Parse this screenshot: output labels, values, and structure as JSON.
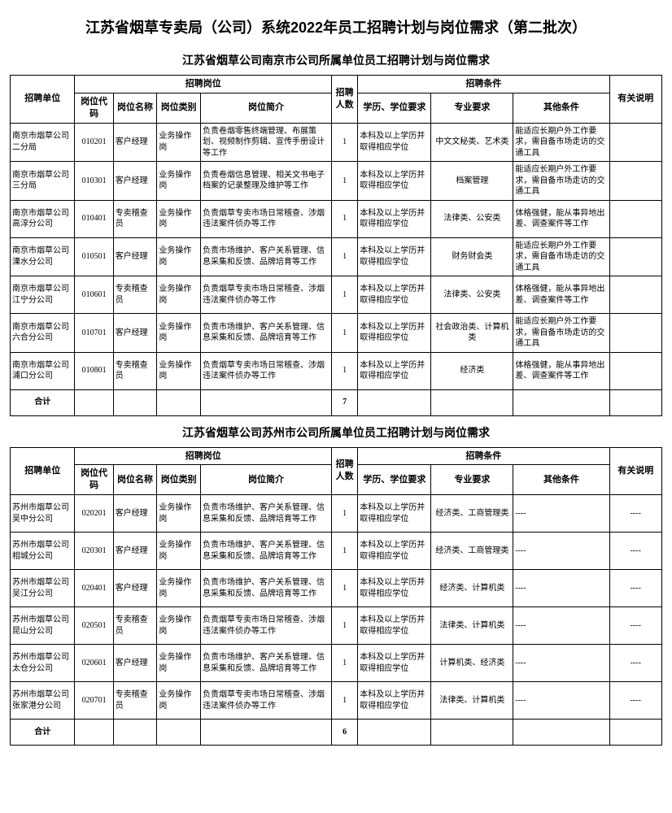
{
  "mainTitle": "江苏省烟草专卖局（公司）系统2022年员工招聘计划与岗位需求（第二批次）",
  "headers": {
    "unit": "招聘单位",
    "positionGroup": "招聘岗位",
    "code": "岗位代码",
    "pname": "岗位名称",
    "ptype": "岗位类别",
    "pdesc": "岗位简介",
    "count": "招聘人数",
    "reqGroup": "招聘条件",
    "edu": "学历、学位要求",
    "major": "专业要求",
    "other": "其他条件",
    "note": "有关说明",
    "totalLabel": "合计"
  },
  "sections": [
    {
      "subtitle": "江苏省烟草公司南京市公司所属单位员工招聘计划与岗位需求",
      "rows": [
        {
          "unit": "南京市烟草公司二分局",
          "code": "010201",
          "pname": "客户经理",
          "ptype": "业务操作岗",
          "pdesc": "负责卷烟零售终端管理、布展策划、视频制作剪辑、宣传手册设计等工作",
          "count": "1",
          "edu": "本科及以上学历并取得相应学位",
          "major": "中文文秘类、艺术类",
          "other": "能适应长期户外工作要求，需自备市场走访的交通工具",
          "note": ""
        },
        {
          "unit": "南京市烟草公司三分局",
          "code": "010301",
          "pname": "客户经理",
          "ptype": "业务操作岗",
          "pdesc": "负责卷烟信息管理、相关文书电子档案的记录整理及维护等工作",
          "count": "1",
          "edu": "本科及以上学历并取得相应学位",
          "major": "档案管理",
          "other": "能适应长期户外工作要求，需自备市场走访的交通工具",
          "note": ""
        },
        {
          "unit": "南京市烟草公司高淳分公司",
          "code": "010401",
          "pname": "专卖稽查员",
          "ptype": "业务操作岗",
          "pdesc": "负责烟草专卖市场日常稽查、涉烟违法案件侦办等工作",
          "count": "1",
          "edu": "本科及以上学历并取得相应学位",
          "major": "法律类、公安类",
          "other": "体格强健，能从事异地出差、调查案件等工作",
          "note": ""
        },
        {
          "unit": "南京市烟草公司溧水分公司",
          "code": "010501",
          "pname": "客户经理",
          "ptype": "业务操作岗",
          "pdesc": "负责市场维护、客户关系管理、信息采集和反馈、品牌培育等工作",
          "count": "1",
          "edu": "本科及以上学历并取得相应学位",
          "major": "财务财会类",
          "other": "能适应长期户外工作要求，需自备市场走访的交通工具",
          "note": ""
        },
        {
          "unit": "南京市烟草公司江宁分公司",
          "code": "010601",
          "pname": "专卖稽查员",
          "ptype": "业务操作岗",
          "pdesc": "负责烟草专卖市场日常稽查、涉烟违法案件侦办等工作",
          "count": "1",
          "edu": "本科及以上学历并取得相应学位",
          "major": "法律类、公安类",
          "other": "体格强健，能从事异地出差、调查案件等工作",
          "note": ""
        },
        {
          "unit": "南京市烟草公司六合分公司",
          "code": "010701",
          "pname": "客户经理",
          "ptype": "业务操作岗",
          "pdesc": "负责市场维护、客户关系管理、信息采集和反馈、品牌培育等工作",
          "count": "1",
          "edu": "本科及以上学历并取得相应学位",
          "major": "社会政治类、计算机类",
          "other": "能适应长期户外工作要求，需自备市场走访的交通工具",
          "note": ""
        },
        {
          "unit": "南京市烟草公司浦口分公司",
          "code": "010801",
          "pname": "专卖稽查员",
          "ptype": "业务操作岗",
          "pdesc": "负责烟草专卖市场日常稽查、涉烟违法案件侦办等工作",
          "count": "1",
          "edu": "本科及以上学历并取得相应学位",
          "major": "经济类",
          "other": "体格强健，能从事异地出差、调查案件等工作",
          "note": ""
        }
      ],
      "total": "7"
    },
    {
      "subtitle": "江苏省烟草公司苏州市公司所属单位员工招聘计划与岗位需求",
      "rows": [
        {
          "unit": "苏州市烟草公司吴中分公司",
          "code": "020201",
          "pname": "客户经理",
          "ptype": "业务操作岗",
          "pdesc": "负责市场维护、客户关系管理、信息采集和反馈、品牌培育等工作",
          "count": "1",
          "edu": "本科及以上学历并取得相应学位",
          "major": "经济类、工商管理类",
          "other": "----",
          "note": "----"
        },
        {
          "unit": "苏州市烟草公司相城分公司",
          "code": "020301",
          "pname": "客户经理",
          "ptype": "业务操作岗",
          "pdesc": "负责市场维护、客户关系管理、信息采集和反馈、品牌培育等工作",
          "count": "1",
          "edu": "本科及以上学历并取得相应学位",
          "major": "经济类、工商管理类",
          "other": "----",
          "note": "----"
        },
        {
          "unit": "苏州市烟草公司吴江分公司",
          "code": "020401",
          "pname": "客户经理",
          "ptype": "业务操作岗",
          "pdesc": "负责市场维护、客户关系管理、信息采集和反馈、品牌培育等工作",
          "count": "1",
          "edu": "本科及以上学历并取得相应学位",
          "major": "经济类、计算机类",
          "other": "----",
          "note": "----"
        },
        {
          "unit": "苏州市烟草公司昆山分公司",
          "code": "020501",
          "pname": "专卖稽查员",
          "ptype": "业务操作岗",
          "pdesc": "负责烟草专卖市场日常稽查、涉烟违法案件侦办等工作",
          "count": "1",
          "edu": "本科及以上学历并取得相应学位",
          "major": "法律类、计算机类",
          "other": "----",
          "note": "----"
        },
        {
          "unit": "苏州市烟草公司太仓分公司",
          "code": "020601",
          "pname": "客户经理",
          "ptype": "业务操作岗",
          "pdesc": "负责市场维护、客户关系管理、信息采集和反馈、品牌培育等工作",
          "count": "1",
          "edu": "本科及以上学历并取得相应学位",
          "major": "计算机类、经济类",
          "other": "----",
          "note": "----"
        },
        {
          "unit": "苏州市烟草公司张家港分公司",
          "code": "020701",
          "pname": "专卖稽查员",
          "ptype": "业务操作岗",
          "pdesc": "负责烟草专卖市场日常稽查、涉烟违法案件侦办等工作",
          "count": "1",
          "edu": "本科及以上学历并取得相应学位",
          "major": "法律类、计算机类",
          "other": "----",
          "note": "----"
        }
      ],
      "total": "6"
    }
  ]
}
